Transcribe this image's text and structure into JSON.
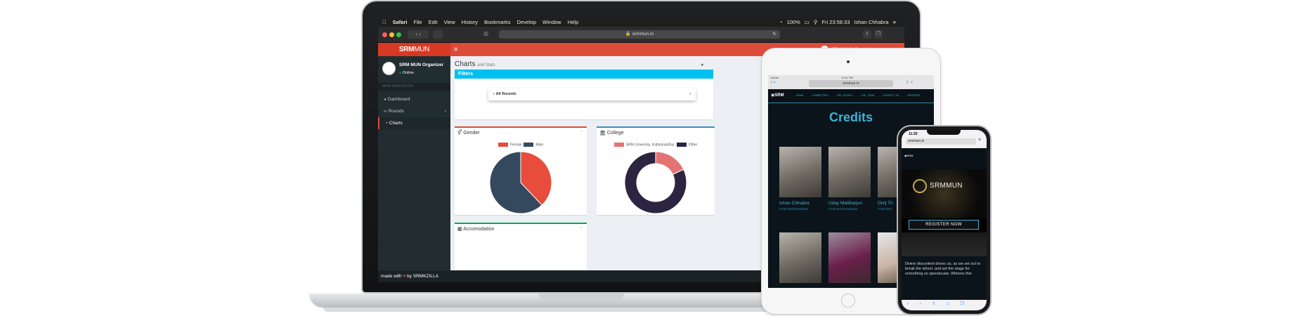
{
  "macos": {
    "menu": [
      "Safari",
      "File",
      "Edit",
      "View",
      "History",
      "Bookmarks",
      "Develop",
      "Window",
      "Help"
    ],
    "clock": "Fri 23:58:33",
    "user": "Ishan Chhabra",
    "battery": "100%"
  },
  "browser": {
    "url": "srmmun.in"
  },
  "admin": {
    "logo_bold": "SRM",
    "logo_light": "MUN",
    "user_name": "SRM MUN Organizer",
    "user_status": "Online",
    "header_user": "SRM MUN Organizer",
    "nav_header": "MAIN NAVIGATION",
    "nav": [
      {
        "label": "Dashboard"
      },
      {
        "label": "Rounds"
      },
      {
        "label": "Charts"
      }
    ],
    "page_title": "Charts",
    "page_subtitle": "and Stats",
    "filters_title": "Filters",
    "filter_select": "All Rounds",
    "gender_title": "Gender",
    "college_title": "College",
    "accomodation_title": "Accomodation",
    "footer_made": "made with",
    "footer_by": "by SRMKZILLA"
  },
  "chart_data": [
    {
      "type": "pie",
      "title": "Gender",
      "categories": [
        "Female",
        "Male"
      ],
      "values": [
        38,
        62
      ],
      "colors": [
        "#e74c3c",
        "#34495e"
      ],
      "legend": "top"
    },
    {
      "type": "pie",
      "title": "College",
      "categories": [
        "SRM University, Kattankulathur",
        "Other"
      ],
      "values": [
        18,
        82
      ],
      "colors": [
        "#e57373",
        "#2c2541"
      ],
      "legend": "top"
    }
  ],
  "tablet": {
    "status_left": "Carrier",
    "time": "11:41 PM",
    "url": "srmmun.in",
    "nav": [
      "HOME",
      "COMMITTEES",
      "THE LEGACY",
      "THE TEAM",
      "CONTACT US",
      "REGISTER"
    ],
    "heading": "Credits",
    "people": [
      {
        "name": "Ishan Chhabra",
        "role": "Front End Developer"
      },
      {
        "name": "Uday Mallikarjun",
        "role": "Front End Developer"
      },
      {
        "name": "Divij Tri",
        "role": "Front End"
      }
    ]
  },
  "phone": {
    "time": "11:20",
    "url": "srmmun.in",
    "brand": "SRMMUN",
    "register": "REGISTER NOW",
    "text": "Divine discontent drives us, as we set out to break the wheel, and set the stage for something so spectacular. Witness this"
  }
}
